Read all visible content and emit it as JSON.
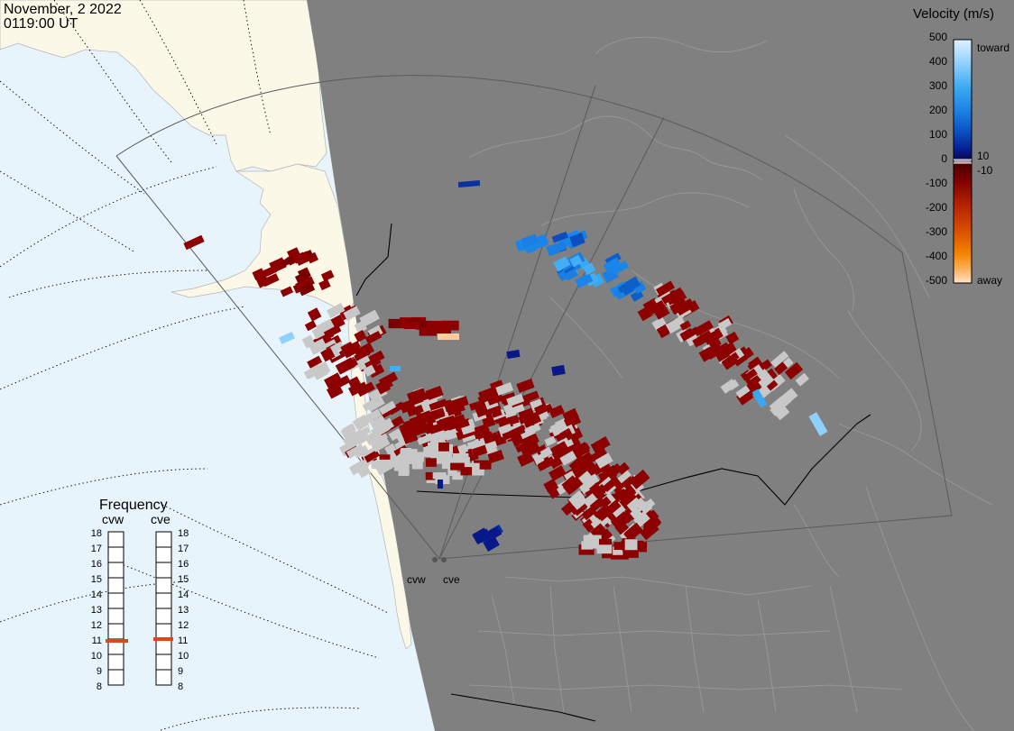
{
  "header": {
    "date": "November, 2 2022",
    "time": "0119:00 UT"
  },
  "legend": {
    "title": "Velocity (m/s)",
    "ticks": [
      "500",
      "400",
      "300",
      "200",
      "100",
      "0",
      "-100",
      "-200",
      "-300",
      "-400",
      "-500"
    ],
    "threshold_pos": "10",
    "threshold_neg": "-10",
    "toward_label": "toward",
    "away_label": "away",
    "colors": {
      "toward": [
        "#cbe8ff",
        "#8fd0ff",
        "#43aef5",
        "#1a86ea",
        "#0a5fc8",
        "#08309a",
        "#0a1a78"
      ],
      "away": [
        "#7a0000",
        "#a31800",
        "#c83a00",
        "#e05c00",
        "#f58a00",
        "#ffb35a",
        "#ffe1bf"
      ],
      "ground_scatter": "#c8c8c8"
    }
  },
  "frequency_panel": {
    "title": "Frequency",
    "radars": [
      {
        "name": "cvw",
        "selected_mhz": 11
      },
      {
        "name": "cve",
        "selected_mhz": 11
      }
    ],
    "ticks": [
      "18",
      "17",
      "16",
      "15",
      "14",
      "13",
      "12",
      "11",
      "10",
      "9",
      "8"
    ]
  },
  "radar_sites": [
    {
      "name": "cvw"
    },
    {
      "name": "cve"
    }
  ],
  "colors": {
    "ocean": "#e8f4fb",
    "land": "#fbf8e8",
    "night": "#808080",
    "border": "#000000",
    "coast_lines": "#9a9a9a",
    "fov_outline": "#555555",
    "freq_marker": "#e0441a"
  }
}
